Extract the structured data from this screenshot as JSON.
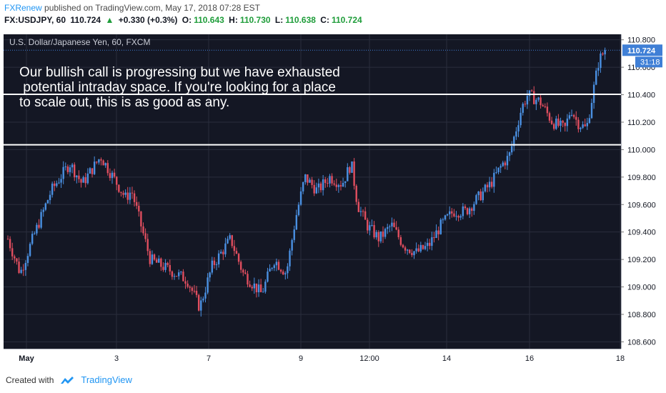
{
  "header": {
    "publisher": "FXRenew",
    "published_text": "published on TradingView.com, May 17, 2018 07:28 EST"
  },
  "quote": {
    "symbol": "FX:USDJPY, 60",
    "last": "110.724",
    "change_arrow": "▲",
    "change": "+0.330 (+0.3%)",
    "o_label": "O:",
    "o": "110.643",
    "h_label": "H:",
    "h": "110.730",
    "l_label": "L:",
    "l": "110.638",
    "c_label": "C:",
    "c": "110.724"
  },
  "chart": {
    "instrument_label": "U.S. Dollar/Japanese Yen, 60, FXCM",
    "annotation_lines": [
      "Our bullish call is progressing but we have exhausted",
      " potential intraday space. If you're looking for a place",
      "to scale out, this is as good as any."
    ],
    "price_tag": "110.724",
    "countdown_tag": "31:18"
  },
  "chart_data": {
    "type": "candlestick",
    "title": "U.S. Dollar/Japanese Yen, 60, FXCM",
    "y_ticks": [
      108.6,
      108.8,
      109.0,
      109.2,
      109.4,
      109.6,
      109.8,
      110.0,
      110.2,
      110.4,
      110.6,
      110.8
    ],
    "y_tick_labels": [
      "108.600",
      "108.800",
      "109.000",
      "109.200",
      "109.400",
      "109.600",
      "109.800",
      "110.000",
      "110.200",
      "110.400",
      "110.600",
      "110.800"
    ],
    "ylim": [
      108.55,
      110.84
    ],
    "x_tick_labels": [
      "May",
      "3",
      "7",
      "9",
      "12:00",
      "14",
      "16",
      "18"
    ],
    "x_tick_positions": [
      0.0,
      0.15,
      0.3,
      0.45,
      0.6,
      0.74,
      0.88,
      1.0
    ],
    "horizontal_levels": [
      {
        "value": 110.403,
        "label": "110.403"
      },
      {
        "value": 110.035,
        "label": "110.035"
      }
    ],
    "last_price": 110.724,
    "series_anchors": [
      [
        0.0,
        109.35
      ],
      [
        0.02,
        109.1
      ],
      [
        0.04,
        109.35
      ],
      [
        0.07,
        109.7
      ],
      [
        0.1,
        109.9
      ],
      [
        0.12,
        109.75
      ],
      [
        0.15,
        109.95
      ],
      [
        0.17,
        109.8
      ],
      [
        0.19,
        109.65
      ],
      [
        0.2,
        109.7
      ],
      [
        0.23,
        109.2
      ],
      [
        0.27,
        109.1
      ],
      [
        0.29,
        109.05
      ],
      [
        0.31,
        108.85
      ],
      [
        0.33,
        109.15
      ],
      [
        0.36,
        109.35
      ],
      [
        0.38,
        109.1
      ],
      [
        0.41,
        108.95
      ],
      [
        0.43,
        109.2
      ],
      [
        0.45,
        109.1
      ],
      [
        0.465,
        109.5
      ],
      [
        0.48,
        109.8
      ],
      [
        0.5,
        109.7
      ],
      [
        0.52,
        109.8
      ],
      [
        0.54,
        109.75
      ],
      [
        0.555,
        109.9
      ],
      [
        0.565,
        109.6
      ],
      [
        0.58,
        109.45
      ],
      [
        0.6,
        109.35
      ],
      [
        0.62,
        109.45
      ],
      [
        0.64,
        109.3
      ],
      [
        0.66,
        109.25
      ],
      [
        0.68,
        109.3
      ],
      [
        0.7,
        109.45
      ],
      [
        0.72,
        109.55
      ],
      [
        0.74,
        109.55
      ],
      [
        0.76,
        109.65
      ],
      [
        0.78,
        109.75
      ],
      [
        0.8,
        109.9
      ],
      [
        0.81,
        109.95
      ],
      [
        0.83,
        110.3
      ],
      [
        0.84,
        110.4
      ],
      [
        0.86,
        110.35
      ],
      [
        0.88,
        110.2
      ],
      [
        0.9,
        110.15
      ],
      [
        0.91,
        110.3
      ],
      [
        0.92,
        110.2
      ],
      [
        0.935,
        110.15
      ],
      [
        0.945,
        110.4
      ],
      [
        0.955,
        110.65
      ],
      [
        0.965,
        110.724
      ]
    ]
  },
  "footer": {
    "created_with": "Created with",
    "brand": "TradingView"
  },
  "colors": {
    "chart_bg": "#141724",
    "up": "#4a90e2",
    "down": "#e04e5f",
    "level_line": "#ffffff",
    "price_tag_bg": "#3f7fd6",
    "brand_blue": "#2196f3"
  }
}
